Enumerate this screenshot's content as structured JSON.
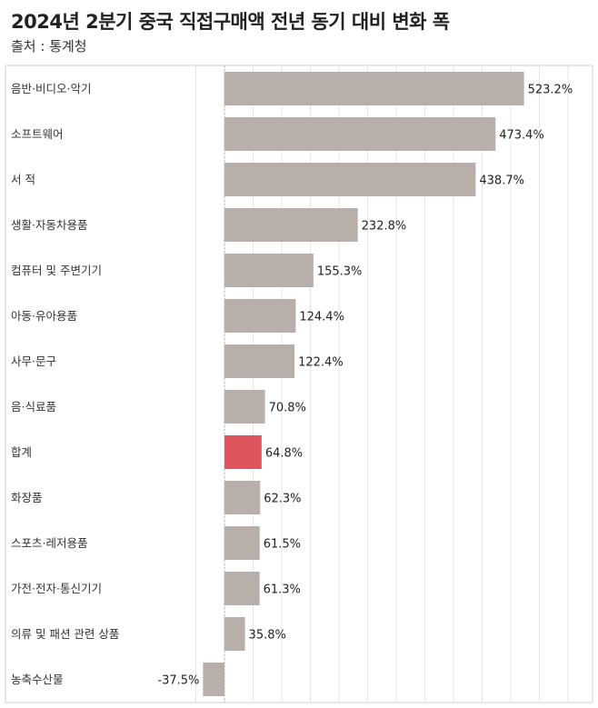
{
  "title": "2024년 2분기 중국 직접구매액 전년 동기 대비 변화 폭",
  "subtitle": "출처 : 통계청",
  "colors": {
    "bar": "#b8aeaa",
    "highlight": "#e0555d",
    "grid": "#e6e6e6",
    "border": "#d0d0d0"
  },
  "chart_data": {
    "type": "bar",
    "orientation": "horizontal",
    "title": "2024년 2분기 중국 직접구매액 전년 동기 대비 변화 폭",
    "subtitle": "출처 : 통계청",
    "unit": "%",
    "highlight_category": "합계",
    "grid": true,
    "categories": [
      "음반·비디오·악기",
      "소프트웨어",
      "서 적",
      "생활·자동차용품",
      "컴퓨터 및 주변기기",
      "아동·유아용품",
      "사무·문구",
      "음·식료품",
      "합계",
      "화장품",
      "스포츠·레저용품",
      "가전·전자·통신기기",
      "의류 및 패션 관련 상품",
      "농축수산물"
    ],
    "values": [
      523.2,
      473.4,
      438.7,
      232.8,
      155.3,
      124.4,
      122.4,
      70.8,
      64.8,
      62.3,
      61.5,
      61.3,
      35.8,
      -37.5
    ],
    "value_labels": [
      "523.2%",
      "473.4%",
      "438.7%",
      "232.8%",
      "155.3%",
      "124.4%",
      "122.4%",
      "70.8%",
      "64.8%",
      "62.3%",
      "61.5%",
      "61.3%",
      "35.8%",
      "-37.5%"
    ]
  }
}
